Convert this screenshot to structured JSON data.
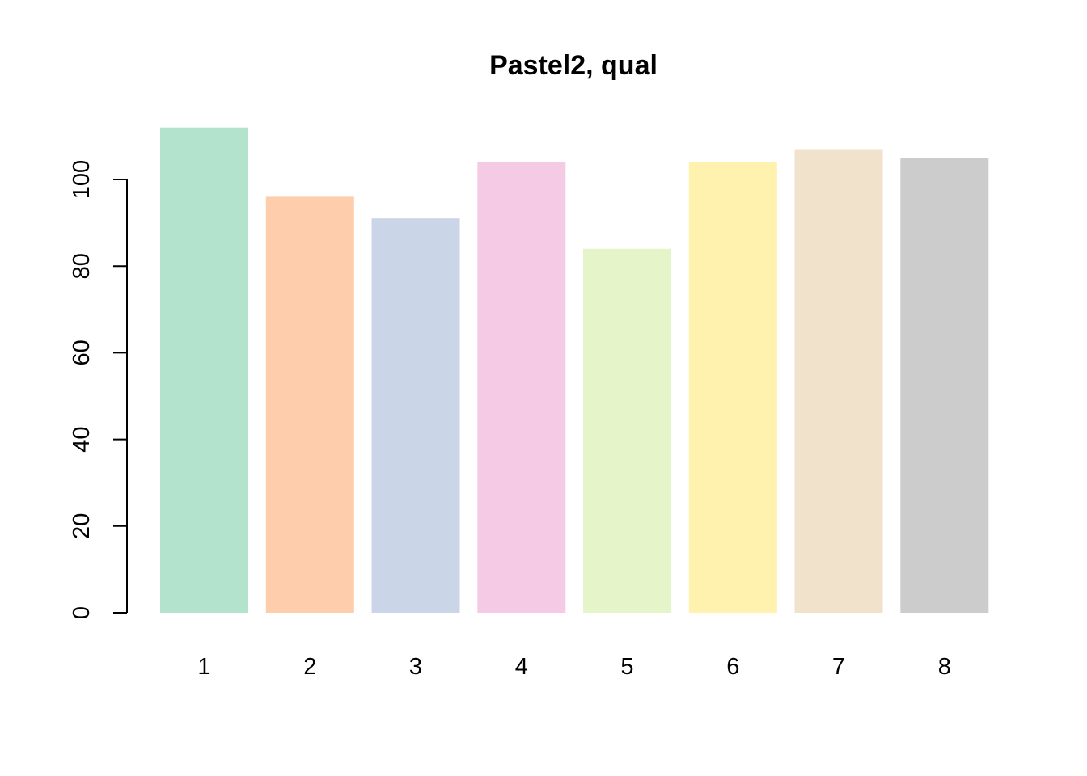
{
  "chart_data": {
    "type": "bar",
    "title": "Pastel2, qual",
    "xlabel": "",
    "ylabel": "",
    "categories": [
      "1",
      "2",
      "3",
      "4",
      "5",
      "6",
      "7",
      "8"
    ],
    "values": [
      112,
      96,
      91,
      104,
      84,
      104,
      107,
      105
    ],
    "colors": [
      "#B3E2CD",
      "#FDCDAC",
      "#CBD5E8",
      "#F4CAE4",
      "#E6F5C9",
      "#FFF2AE",
      "#F1E2CC",
      "#CCCCCC"
    ],
    "ylim": [
      0,
      112
    ],
    "yticks": [
      0,
      20,
      40,
      60,
      80,
      100
    ],
    "ytick_labels": [
      "0",
      "20",
      "40",
      "60",
      "80",
      "100"
    ],
    "grid": false,
    "legend": "none"
  }
}
